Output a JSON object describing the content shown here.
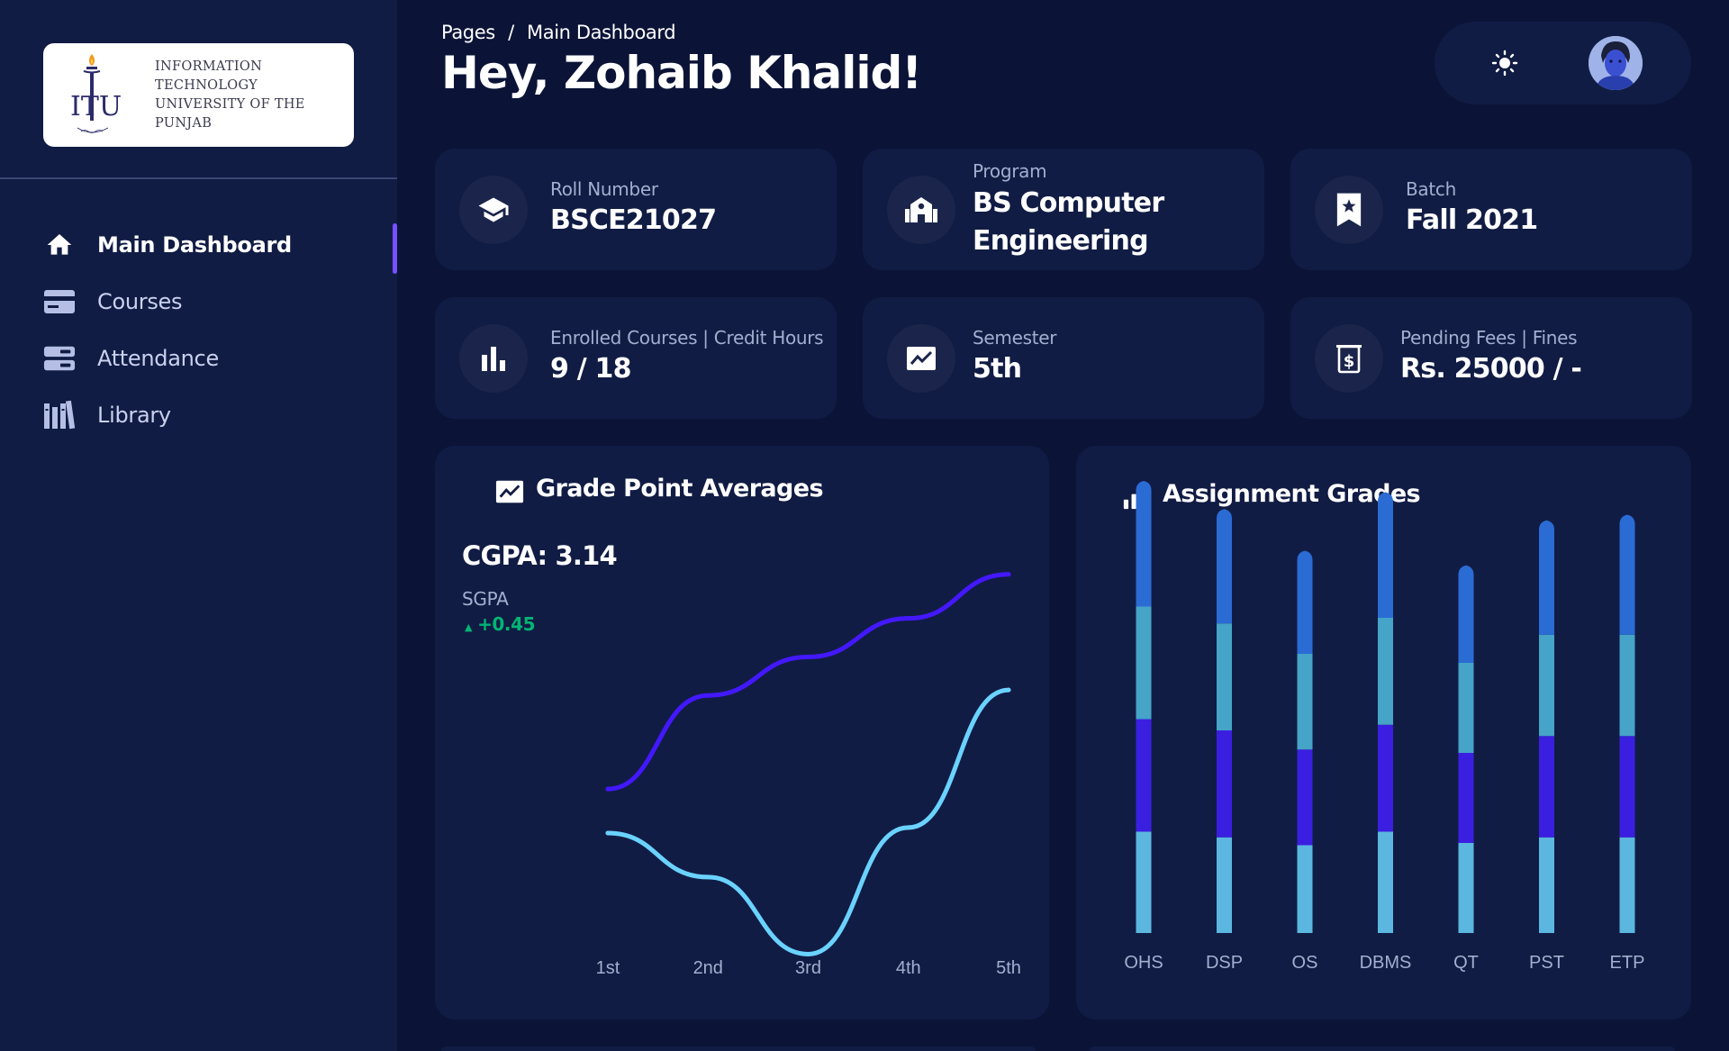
{
  "sidebar": {
    "logo": {
      "monogram": "ITU",
      "line1": "INFORMATION TECHNOLOGY",
      "line2": "UNIVERSITY OF THE PUNJAB"
    },
    "items": [
      {
        "label": "Main Dashboard",
        "icon": "home-icon",
        "active": true
      },
      {
        "label": "Courses",
        "icon": "credit-card-icon",
        "active": false
      },
      {
        "label": "Attendance",
        "icon": "storage-icon",
        "active": false
      },
      {
        "label": "Library",
        "icon": "library-books-icon",
        "active": false
      }
    ]
  },
  "header": {
    "breadcrumb_root": "Pages",
    "breadcrumb_sep": "/",
    "breadcrumb_current": "Main Dashboard",
    "greeting": "Hey, Zohaib Khalid!",
    "theme_icon": "sun-icon"
  },
  "stats": [
    {
      "label": "Roll Number",
      "value": "BSCE21027",
      "icon": "graduation-cap-icon"
    },
    {
      "label": "Program",
      "value_line1": "BS Computer",
      "value_line2": "Engineering",
      "icon": "school-icon"
    },
    {
      "label": "Batch",
      "value": "Fall 2021",
      "icon": "bookmark-star-icon"
    },
    {
      "label": "Enrolled Courses | Credit Hours",
      "value": "9 / 18",
      "icon": "bar-chart-icon"
    },
    {
      "label": "Semester",
      "value": "5th",
      "icon": "trending-up-icon"
    },
    {
      "label": "Pending Fees | Fines",
      "value": "Rs. 25000 / -",
      "icon": "fee-receipt-icon"
    }
  ],
  "gpa_card": {
    "title": "Grade Point Averages",
    "cgpa": "CGPA: 3.14",
    "sgpa_label": "SGPA",
    "sgpa_change": "+0.45"
  },
  "assignment_card": {
    "title": "Assignment Grades"
  },
  "colors": {
    "background": "#0b1437",
    "card": "#111c44",
    "accent_purple": "#7551ff",
    "line_dark": "#4318ff",
    "line_light": "#6ad2ff",
    "positive": "#01b574",
    "bar_top": "#2b6bd4",
    "bar_2": "#45a4c8",
    "bar_3": "#3b1fe0",
    "bar_bottom": "#5bb7df"
  },
  "chart_data": [
    {
      "type": "line",
      "x": [
        "1st",
        "2nd",
        "3rd",
        "4th",
        "5th"
      ],
      "series": [
        {
          "values": [
            2.2,
            3.05,
            3.4,
            3.75,
            4.15
          ]
        },
        {
          "values": [
            1.8,
            1.4,
            0.7,
            1.85,
            3.1
          ]
        }
      ]
    },
    {
      "type": "bar",
      "stacked": true,
      "categories": [
        "OHS",
        "DSP",
        "OS",
        "DBMS",
        "QT",
        "PST",
        "ETP"
      ],
      "series": [
        {
          "values": [
            9,
            8.5,
            7.8,
            9,
            8,
            8.5,
            8.5
          ]
        },
        {
          "values": [
            10,
            9.5,
            8.5,
            9.5,
            8,
            9,
            9
          ]
        },
        {
          "values": [
            10,
            9.5,
            8.5,
            9.5,
            8,
            9,
            9
          ]
        },
        {
          "values": [
            11,
            10,
            9,
            11,
            8.5,
            10,
            10.5
          ]
        }
      ],
      "ylim": [
        0,
        40
      ]
    }
  ]
}
